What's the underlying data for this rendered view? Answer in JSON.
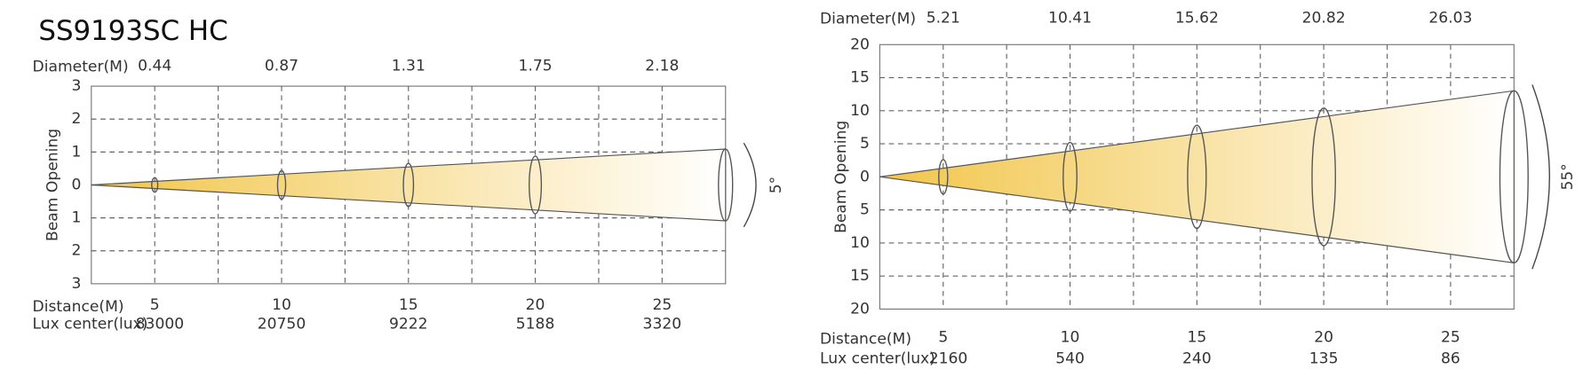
{
  "title": "SS9193SC HC",
  "chart_data": [
    {
      "type": "beam",
      "diameter_label": "Diameter(M)",
      "diameters": [
        0.44,
        0.87,
        1.31,
        1.75,
        2.18
      ],
      "y_label": "Beam Opening",
      "ylim": [
        -3,
        3
      ],
      "yticks": [
        {
          "value": -3,
          "label": "3"
        },
        {
          "value": -2,
          "label": "2"
        },
        {
          "value": -1,
          "label": "1"
        },
        0,
        1,
        2,
        3
      ],
      "distance_label": "Distance(M)",
      "distances": [
        5,
        10,
        15,
        20,
        25
      ],
      "lux_label": "Lux center(lux)",
      "lux": [
        83000,
        20750,
        9222,
        5188,
        3320
      ],
      "angle_label": "5°",
      "color": "#f2c64a"
    },
    {
      "type": "beam",
      "diameter_label": "Diameter(M)",
      "diameters": [
        5.21,
        10.41,
        15.62,
        20.82,
        26.03
      ],
      "y_label": "Beam Opening",
      "ylim": [
        -20,
        20
      ],
      "yticks": [
        {
          "value": -20,
          "label": "20"
        },
        {
          "value": -15,
          "label": "15"
        },
        {
          "value": -10,
          "label": "10"
        },
        {
          "value": -5,
          "label": "5"
        },
        0,
        5,
        10,
        15,
        20
      ],
      "distance_label": "Distance(M)",
      "distances": [
        5,
        10,
        15,
        20,
        25
      ],
      "lux_label": "Lux center(lux)",
      "lux": [
        2160,
        540,
        240,
        135,
        86
      ],
      "angle_label": "55°",
      "color": "#f2c64a"
    }
  ]
}
